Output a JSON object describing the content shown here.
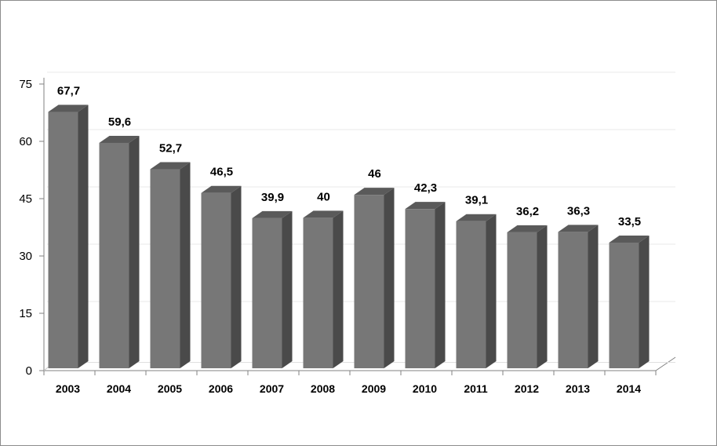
{
  "chart_data": {
    "type": "bar",
    "categories": [
      "2003",
      "2004",
      "2005",
      "2006",
      "2007",
      "2008",
      "2009",
      "2010",
      "2011",
      "2012",
      "2013",
      "2014"
    ],
    "values": [
      67.7,
      59.6,
      52.7,
      46.5,
      39.9,
      40,
      46,
      42.3,
      39.1,
      36.2,
      36.3,
      33.5
    ],
    "data_labels": [
      "67,7",
      "59,6",
      "52,7",
      "46,5",
      "39,9",
      "40",
      "46",
      "42,3",
      "39,1",
      "36,2",
      "36,3",
      "33,5"
    ],
    "yticks": [
      0,
      15,
      30,
      45,
      60,
      75
    ],
    "ytick_labels": [
      "0",
      "15",
      "30",
      "45",
      "60",
      "75"
    ],
    "ylim": [
      0,
      75
    ],
    "title": "",
    "xlabel": "",
    "ylabel": "",
    "grid": true,
    "legend": "none",
    "bar_color_front": "#777777",
    "bar_color_side": "#4a4a4a",
    "bar_color_top": "#5a5a5a"
  }
}
